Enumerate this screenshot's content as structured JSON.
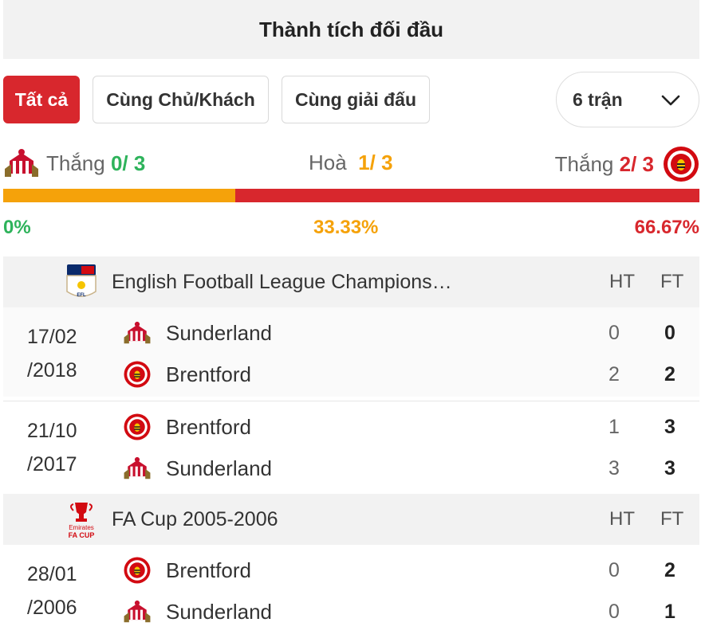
{
  "header": {
    "title": "Thành tích đối đầu"
  },
  "filters": {
    "all_label": "Tất cả",
    "home_away_label": "Cùng Chủ/Khách",
    "same_league_label": "Cùng giải đấu",
    "match_count_label": "6 trận"
  },
  "summary": {
    "left_label": "Thắng",
    "left_value": "0/ 3",
    "draw_label": "Hoà",
    "draw_value": "1/ 3",
    "right_label": "Thắng",
    "right_value": "2/ 3",
    "left_pct": "0%",
    "draw_pct": "33.33%",
    "right_pct": "66.67%",
    "bar": {
      "home_win_fraction": 0,
      "draw_fraction": 0.3333,
      "away_win_fraction": 0.6667
    }
  },
  "colors": {
    "win_green": "#2eb35b",
    "draw_orange": "#f5a20a",
    "loss_red": "#d8272d",
    "accent": "#d8272d"
  },
  "leagues": [
    {
      "name": "English Football League Champions…",
      "logo_text": "EFL",
      "ht_label": "HT",
      "ft_label": "FT",
      "matches": [
        {
          "date_line1": "17/02",
          "date_line2": "/2018",
          "home": {
            "name": "Sunderland",
            "icon": "sunderland-crest-icon",
            "ht": "0",
            "ft": "0"
          },
          "away": {
            "name": "Brentford",
            "icon": "brentford-crest-icon",
            "ht": "2",
            "ft": "2"
          }
        },
        {
          "date_line1": "21/10",
          "date_line2": "/2017",
          "home": {
            "name": "Brentford",
            "icon": "brentford-crest-icon",
            "ht": "1",
            "ft": "3"
          },
          "away": {
            "name": "Sunderland",
            "icon": "sunderland-crest-icon",
            "ht": "3",
            "ft": "3"
          }
        }
      ]
    },
    {
      "name": "FA Cup 2005-2006",
      "logo_text_1": "Emirates",
      "logo_text_2": "FA CUP",
      "ht_label": "HT",
      "ft_label": "FT",
      "matches": [
        {
          "date_line1": "28/01",
          "date_line2": "/2006",
          "home": {
            "name": "Brentford",
            "icon": "brentford-crest-icon",
            "ht": "0",
            "ft": "2"
          },
          "away": {
            "name": "Sunderland",
            "icon": "sunderland-crest-icon",
            "ht": "0",
            "ft": "1"
          }
        }
      ]
    }
  ]
}
